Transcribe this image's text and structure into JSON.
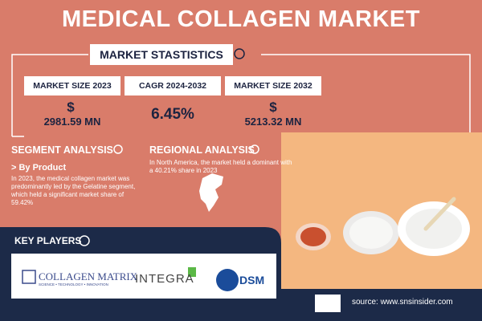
{
  "title": "MEDICAL COLLAGEN MARKET",
  "stats": {
    "heading": "MARKET STASTISTICS",
    "items": [
      {
        "label": "MARKET SIZE 2023",
        "currency": "$",
        "value": "2981.59 MN"
      },
      {
        "label": "CAGR 2024-2032",
        "value": "6.45%"
      },
      {
        "label": "MARKET SIZE 2032",
        "currency": "$",
        "value": "5213.32 MN"
      }
    ]
  },
  "segment": {
    "heading": "SEGMENT ANALYSIS",
    "subheading": "> By Product",
    "text": "In 2023, the medical collagen market was predominantly led by the Gelatine segment, which held a significant market share of 59.42%"
  },
  "regional": {
    "heading": "REGIONAL ANALYSIS",
    "text": "In North America, the market held a dominant with a 40.21% share in 2023"
  },
  "key_players": {
    "heading": "KEY PLAYERS",
    "logos": {
      "collagen_matrix": "COLLAGEN MATRIX",
      "collagen_matrix_tagline": "SCIENCE • TECHNOLOGY • INNOVATION",
      "integra": "INTEGRA",
      "dsm": "DSM"
    }
  },
  "source": "source: www.snsinsider.com"
}
